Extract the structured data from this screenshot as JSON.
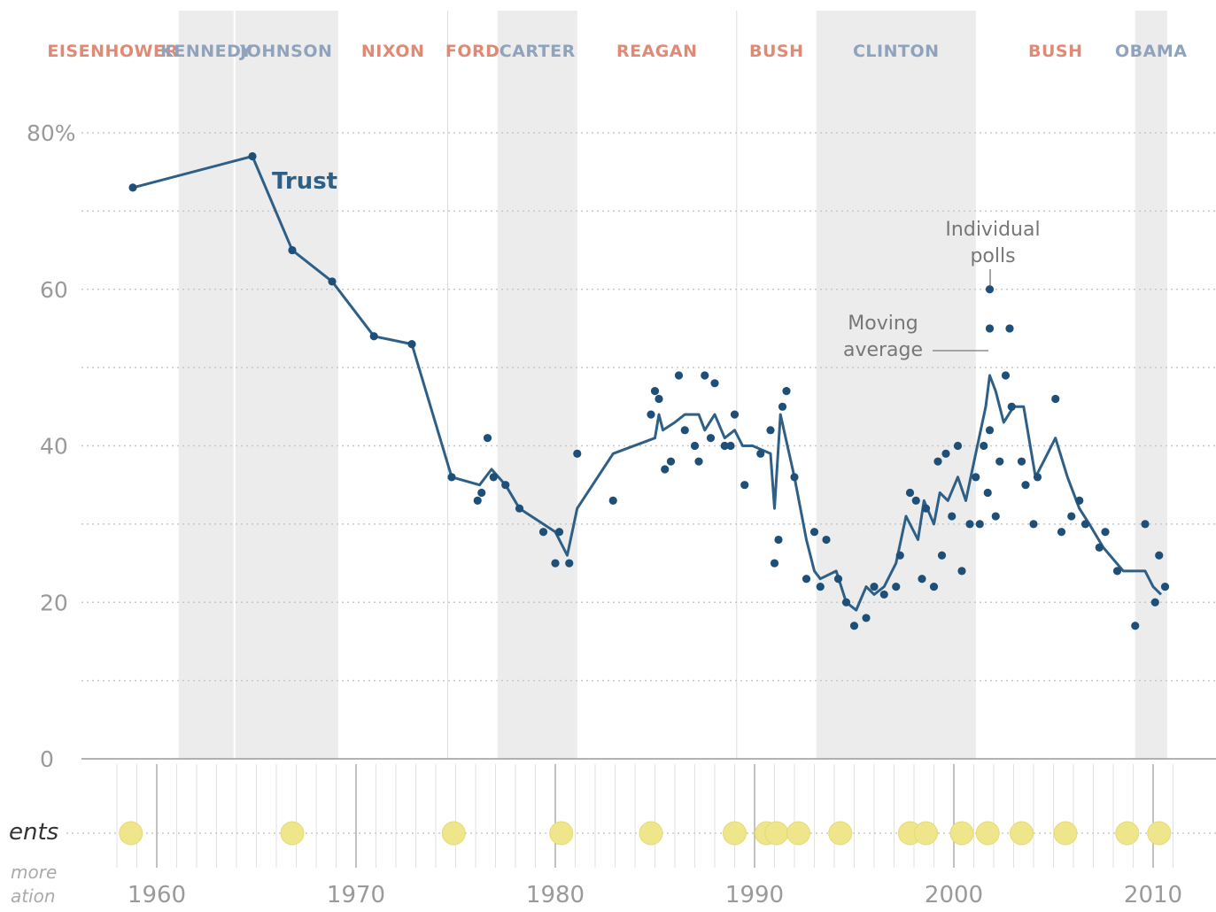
{
  "chart_data": {
    "type": "line",
    "ylim": [
      0,
      80
    ],
    "xlim": [
      1954.5,
      2012.5
    ],
    "y_ticks": [
      {
        "value": 80,
        "label": "80%"
      },
      {
        "value": 60,
        "label": "60"
      },
      {
        "value": 40,
        "label": "40"
      },
      {
        "value": 20,
        "label": "20"
      },
      {
        "value": 0,
        "label": "0"
      }
    ],
    "x_ticks": [
      {
        "value": 1960,
        "label": "1960"
      },
      {
        "value": 1970,
        "label": "1970"
      },
      {
        "value": 1980,
        "label": "1980"
      },
      {
        "value": 1990,
        "label": "1990"
      },
      {
        "value": 2000,
        "label": "2000"
      },
      {
        "value": 2010,
        "label": "2010"
      }
    ],
    "grid": true,
    "presidencies": [
      {
        "name": "EISENHOWER",
        "start": 1954.5,
        "end": 1961.1,
        "party": "R"
      },
      {
        "name": "KENNEDY",
        "start": 1961.1,
        "end": 1963.9,
        "party": "D"
      },
      {
        "name": "JOHNSON",
        "start": 1963.9,
        "end": 1969.1,
        "party": "D"
      },
      {
        "name": "NIXON",
        "start": 1969.1,
        "end": 1974.6,
        "party": "R"
      },
      {
        "name": "FORD",
        "start": 1974.6,
        "end": 1977.1,
        "party": "R"
      },
      {
        "name": "CARTER",
        "start": 1977.1,
        "end": 1981.1,
        "party": "D"
      },
      {
        "name": "REAGAN",
        "start": 1981.1,
        "end": 1989.1,
        "party": "R"
      },
      {
        "name": "BUSH",
        "start": 1989.1,
        "end": 1993.1,
        "party": "R"
      },
      {
        "name": "CLINTON",
        "start": 1993.1,
        "end": 2001.1,
        "party": "D"
      },
      {
        "name": "BUSH",
        "start": 2001.1,
        "end": 2009.1,
        "party": "R"
      },
      {
        "name": "OBAMA",
        "start": 2009.1,
        "end": 2010.7,
        "party": "D"
      }
    ],
    "series": [
      {
        "name": "Trust",
        "role": "moving-average",
        "x": [
          1958.8,
          1964.8,
          1966.8,
          1968.8,
          1970.9,
          1972.8,
          1974.8,
          1976.2,
          1976.8,
          1977.5,
          1978.2,
          1979.4,
          1980.0,
          1980.6,
          1981.1,
          1982.9,
          1985.0,
          1985.2,
          1985.4,
          1986.0,
          1986.5,
          1987.2,
          1987.5,
          1988.0,
          1988.5,
          1989.0,
          1989.4,
          1989.9,
          1990.8,
          1991.0,
          1991.3,
          1992.0,
          1992.6,
          1993.0,
          1993.3,
          1994.1,
          1994.6,
          1995.1,
          1995.6,
          1996.0,
          1996.5,
          1997.1,
          1997.6,
          1998.2,
          1998.5,
          1999.0,
          1999.3,
          1999.7,
          2000.2,
          2000.6,
          2001.1,
          2001.6,
          2001.8,
          2002.1,
          2002.5,
          2003.0,
          2003.5,
          2004.1,
          2004.5,
          2005.1,
          2005.7,
          2006.3,
          2006.8,
          2007.5,
          2008.5,
          2009.1,
          2009.6,
          2010.0,
          2010.4
        ],
        "values": [
          73,
          77,
          65,
          61,
          54,
          53,
          36,
          35,
          37,
          35,
          32,
          30,
          29,
          26,
          32,
          39,
          41,
          44,
          42,
          43,
          44,
          44,
          42,
          44,
          41,
          42,
          40,
          40,
          39,
          32,
          44,
          36,
          28,
          24,
          23,
          24,
          20,
          19,
          22,
          21,
          22,
          25,
          31,
          28,
          33,
          30,
          34,
          33,
          36,
          33,
          39,
          45,
          49,
          47,
          43,
          45,
          45,
          36,
          38,
          41,
          36,
          32,
          30,
          27,
          24,
          24,
          24,
          22,
          21
        ]
      },
      {
        "name": "Individual polls",
        "role": "points",
        "x": [
          1958.8,
          1964.8,
          1966.8,
          1968.8,
          1970.9,
          1972.8,
          1974.8,
          1976.1,
          1976.3,
          1976.6,
          1976.9,
          1977.5,
          1978.2,
          1979.4,
          1980.0,
          1980.2,
          1980.7,
          1981.1,
          1982.9,
          1984.8,
          1985.0,
          1985.2,
          1985.5,
          1985.8,
          1986.2,
          1986.5,
          1987.0,
          1987.2,
          1987.5,
          1987.8,
          1988.0,
          1988.5,
          1988.8,
          1989.0,
          1989.5,
          1990.3,
          1990.8,
          1991.0,
          1991.2,
          1991.4,
          1991.6,
          1992.0,
          1992.6,
          1993.0,
          1993.3,
          1993.6,
          1994.2,
          1994.6,
          1995.0,
          1995.6,
          1996.0,
          1996.5,
          1997.1,
          1997.3,
          1997.8,
          1998.1,
          1998.4,
          1998.6,
          1999.0,
          1999.2,
          1999.4,
          1999.6,
          1999.9,
          2000.2,
          2000.4,
          2000.8,
          2001.1,
          2001.3,
          2001.5,
          2001.7,
          2001.8,
          2002.1,
          2002.3,
          2002.6,
          2002.9,
          2003.4,
          2003.6,
          2004.0,
          2004.2,
          2005.1,
          2005.4,
          2005.9,
          2006.3,
          2006.6,
          2007.3,
          2007.6,
          2008.2,
          2009.1,
          2009.6,
          2010.1,
          2010.3,
          2010.6
        ],
        "values": [
          73,
          77,
          65,
          61,
          54,
          53,
          36,
          33,
          34,
          41,
          36,
          35,
          32,
          29,
          25,
          29,
          25,
          39,
          33,
          44,
          47,
          46,
          37,
          38,
          49,
          42,
          40,
          38,
          49,
          41,
          48,
          40,
          40,
          44,
          35,
          39,
          42,
          25,
          28,
          45,
          47,
          36,
          23,
          29,
          22,
          28,
          23,
          20,
          17,
          18,
          22,
          21,
          22,
          26,
          34,
          33,
          23,
          32,
          22,
          38,
          26,
          39,
          31,
          40,
          24,
          30,
          36,
          30,
          40,
          34,
          42,
          31,
          38,
          49,
          45,
          38,
          35,
          30,
          36,
          46,
          29,
          31,
          33,
          30,
          27,
          29,
          24,
          17,
          30,
          20,
          26,
          22
        ],
        "highlight": [
          {
            "x": 2001.8,
            "value": 60
          },
          {
            "x": 2001.8,
            "value": 55
          },
          {
            "x": 2002.8,
            "value": 55
          }
        ]
      }
    ],
    "events_row": {
      "label": "ents",
      "sublabel_1": "more",
      "sublabel_2": "ation",
      "years": [
        1958.7,
        1966.8,
        1974.9,
        1980.3,
        1984.8,
        1989.0,
        1990.6,
        1991.1,
        1992.2,
        1994.3,
        1997.8,
        1998.6,
        2000.4,
        2001.7,
        2003.4,
        2005.6,
        2008.7,
        2010.3
      ]
    },
    "annotations": {
      "trust_label": "Trust",
      "individual_polls_1": "Individual",
      "individual_polls_2": "polls",
      "moving_average_1": "Moving",
      "moving_average_2": "average"
    },
    "colors": {
      "line": "#2e5f86",
      "dot": "#1e4f78",
      "republican": "#e08a75",
      "democrat": "#8fa3bd",
      "dem_band": "#ececec",
      "event_dot": "#efe58a",
      "grid": "#c8c8c8",
      "axis": "#9a9a9a"
    }
  }
}
